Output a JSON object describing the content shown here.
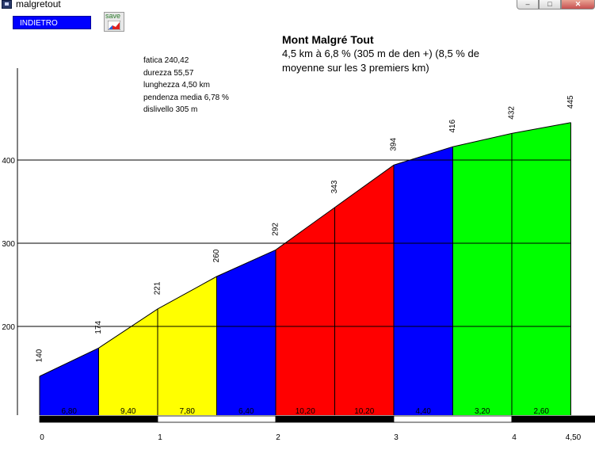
{
  "window": {
    "title": "malgretout"
  },
  "toolbar": {
    "back_label": "INDIETRO",
    "save_label": "save"
  },
  "header": {
    "title": "Mont Malgré Tout",
    "subtitle": "4,5 km à 6,8 % (305 m de den +) (8,5 % de moyenne sur les 3 premiers km)"
  },
  "stats": [
    "fatica 240,42",
    "durezza 55,57",
    "lunghezza 4,50 km",
    "pendenza media 6,78 %",
    "dislivello 305 m"
  ],
  "chart_data": {
    "type": "area",
    "x": [
      0,
      0.5,
      1,
      1.5,
      2,
      2.5,
      3,
      3.5,
      4,
      4.5
    ],
    "y": [
      140,
      174,
      221,
      260,
      292,
      343,
      394,
      416,
      432,
      445
    ],
    "point_labels": [
      "140",
      "174",
      "221",
      "260",
      "292",
      "343",
      "394",
      "416",
      "432",
      "445"
    ],
    "segments": [
      {
        "grade_label": "6,80",
        "color": "#0000ff"
      },
      {
        "grade_label": "9,40",
        "color": "#ffff00"
      },
      {
        "grade_label": "7,80",
        "color": "#ffff00"
      },
      {
        "grade_label": "6,40",
        "color": "#0000ff"
      },
      {
        "grade_label": "10,20",
        "color": "#ff0000"
      },
      {
        "grade_label": "10,20",
        "color": "#ff0000"
      },
      {
        "grade_label": "4,40",
        "color": "#0000ff"
      },
      {
        "grade_label": "3,20",
        "color": "#00ff00"
      },
      {
        "grade_label": "2,60",
        "color": "#00ff00"
      }
    ],
    "y_ticks": [
      200,
      300,
      400
    ],
    "y_tick_labels": [
      "200",
      "300",
      "400"
    ],
    "x_ticks": [
      0,
      1,
      2,
      3,
      4,
      4.5
    ],
    "x_tick_labels": [
      "0",
      "1",
      "2",
      "3",
      "4",
      "4,50"
    ],
    "xlim": [
      0,
      4.5
    ],
    "ylim": [
      100,
      520
    ],
    "grid": true
  }
}
